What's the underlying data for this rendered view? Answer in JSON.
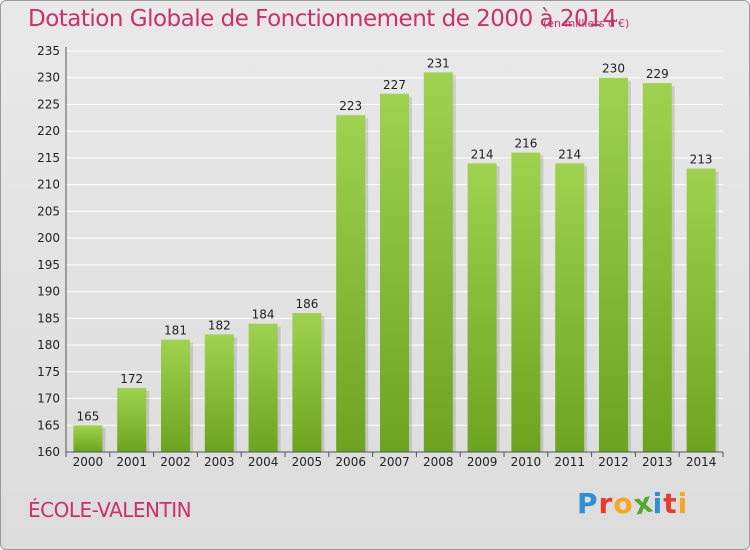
{
  "title": "Dotation Globale de Fonctionnement de 2000 à 2014",
  "unit_note": "(en milliers d'€)",
  "commune": "ÉCOLE-VALENTIN",
  "logo": {
    "letters": [
      "P",
      "r",
      "o",
      "x",
      "i",
      "t",
      "i"
    ],
    "colors": [
      "#2f8fd6",
      "#e53c2e",
      "#f5a623",
      "#5aa62f",
      "#2f8fd6",
      "#e53c2e",
      "#f5a623"
    ]
  },
  "colors": {
    "bar_top": "#9fd34f",
    "bar_bottom": "#6ca31f",
    "title": "#c9306c",
    "grid": "#ffffff"
  },
  "chart_data": {
    "type": "bar",
    "title": "Dotation Globale de Fonctionnement de 2000 à 2014",
    "categories": [
      "2000",
      "2001",
      "2002",
      "2003",
      "2004",
      "2005",
      "2006",
      "2007",
      "2008",
      "2009",
      "2010",
      "2011",
      "2012",
      "2013",
      "2014"
    ],
    "values": [
      165,
      172,
      181,
      182,
      184,
      186,
      223,
      227,
      231,
      214,
      216,
      214,
      230,
      229,
      213
    ],
    "data_labels": [
      "165",
      "172",
      "181",
      "182",
      "184",
      "186",
      "223",
      "227",
      "231",
      "214",
      "216",
      "214",
      "230",
      "229",
      "213"
    ],
    "ylim": [
      160,
      235
    ],
    "yticks": [
      160,
      165,
      170,
      175,
      180,
      185,
      190,
      195,
      200,
      205,
      210,
      215,
      220,
      225,
      230,
      235
    ],
    "grid": true
  }
}
